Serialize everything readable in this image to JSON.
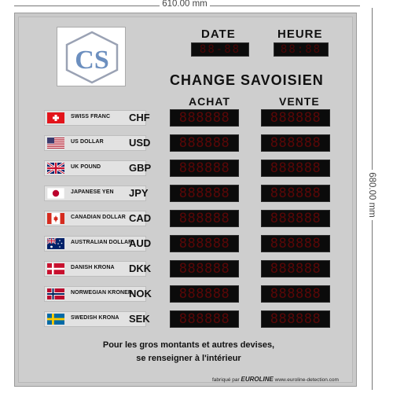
{
  "dimensions": {
    "width_label": "610.00 mm",
    "height_label": "680.00 mm"
  },
  "logo": {
    "text": "CS",
    "color": "#6c8fbf"
  },
  "header": {
    "date_label": "DATE",
    "time_label": "HEURE",
    "date_display": "88-88",
    "time_display": "88:88"
  },
  "title": "CHANGE SAVOISIEN",
  "columns": {
    "buy": "ACHAT",
    "sell": "VENTE"
  },
  "rows": [
    {
      "flag": "swiss-flag",
      "name": "SWISS FRANC",
      "code": "CHF",
      "buy": "888888",
      "sell": "888888"
    },
    {
      "flag": "usa-flag",
      "name": "US DOLLAR",
      "code": "USD",
      "buy": "888888",
      "sell": "888888"
    },
    {
      "flag": "uk-flag",
      "name": "UK POUND",
      "code": "GBP",
      "buy": "888888",
      "sell": "888888"
    },
    {
      "flag": "japan-flag",
      "name": "JAPANESE YEN",
      "code": "JPY",
      "buy": "888888",
      "sell": "888888"
    },
    {
      "flag": "canada-flag",
      "name": "CANADIAN DOLLAR",
      "code": "CAD",
      "buy": "888888",
      "sell": "888888"
    },
    {
      "flag": "australia-flag",
      "name": "AUSTRALIAN DOLLAR",
      "code": "AUD",
      "buy": "888888",
      "sell": "888888"
    },
    {
      "flag": "denmark-flag",
      "name": "DANISH KRONA",
      "code": "DKK",
      "buy": "888888",
      "sell": "888888"
    },
    {
      "flag": "norway-flag",
      "name": "NORWEGIAN KRONER",
      "code": "NOK",
      "buy": "888888",
      "sell": "888888"
    },
    {
      "flag": "sweden-flag",
      "name": "SWEDISH KRONA",
      "code": "SEK",
      "buy": "888888",
      "sell": "888888"
    }
  ],
  "footer": {
    "line1": "Pour les gros montants et autres devises,",
    "line2": "se renseigner à l'intérieur"
  },
  "credit": {
    "prefix": "fabriqué par",
    "brand": "EUROLINE",
    "site": "www.euroline-detection.com"
  }
}
